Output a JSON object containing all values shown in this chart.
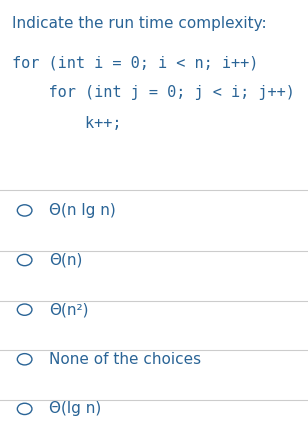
{
  "title": "Indicate the run time complexity:",
  "code_lines": [
    "for (int i = 0; i < n; i++)",
    "    for (int j = 0; j < i; j++)",
    "        k++;"
  ],
  "options": [
    "Θ(n lg n)",
    "Θ(n)",
    "Θ(n²)",
    "None of the choices",
    "Θ(lg n)"
  ],
  "bg_color": "#ffffff",
  "text_color": "#2a6496",
  "separator_color": "#cccccc",
  "title_fontsize": 11.0,
  "code_fontsize": 11.0,
  "option_fontsize": 11.0,
  "fig_width": 3.08,
  "fig_height": 4.43
}
